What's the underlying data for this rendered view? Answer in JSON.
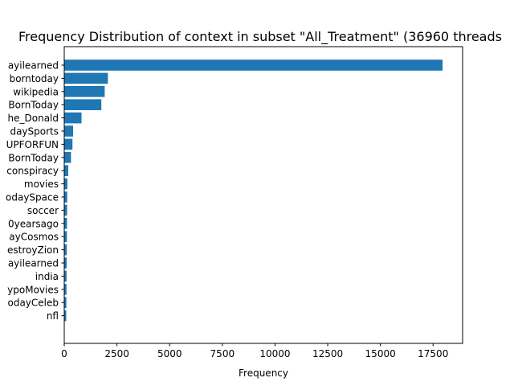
{
  "chart_data": {
    "type": "bar",
    "orientation": "horizontal",
    "title": "Frequency Distribution of context in subset \"All_Treatment\" (36960 threads",
    "xlabel": "Frequency",
    "ylabel": "",
    "xlim": [
      0,
      18900
    ],
    "xticks": [
      0,
      2500,
      5000,
      7500,
      10000,
      12500,
      15000,
      17500
    ],
    "xtick_labels": [
      "0",
      "2500",
      "5000",
      "7500",
      "10000",
      "12500",
      "15000",
      "17500"
    ],
    "categories": [
      "ayilearned",
      "borntoday",
      "wikipedia",
      "BornToday",
      "he_Donald",
      "daySports",
      "UPFORFUN",
      "BornToday",
      "conspiracy",
      "movies",
      "odaySpace",
      "soccer",
      "0yearsago",
      "ayCosmos",
      "estroyZion",
      "ayilearned",
      "india",
      "ypoMovies",
      "odayCeleb",
      "nfl"
    ],
    "values": [
      17950,
      2070,
      1920,
      1760,
      820,
      420,
      390,
      320,
      190,
      150,
      140,
      135,
      130,
      125,
      120,
      115,
      110,
      105,
      100,
      95
    ],
    "bar_color": "#1f77b4",
    "grid": false,
    "legend": "none"
  }
}
